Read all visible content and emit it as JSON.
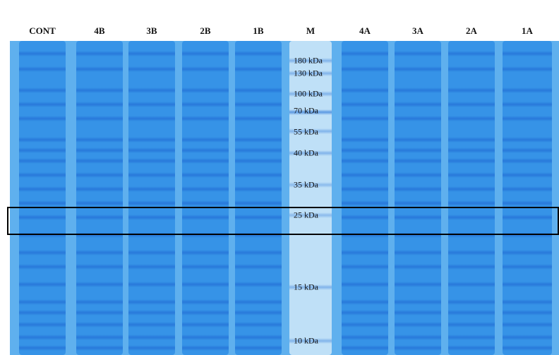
{
  "figure": {
    "lane_labels": [
      "CONT",
      "4B",
      "3B",
      "2B",
      "1B",
      "M",
      "4A",
      "3A",
      "2A",
      "1A"
    ],
    "marker_labels": [
      "180 kDa",
      "130 kDa",
      "100 kDa",
      "70 kDa",
      "55 kDa",
      "40 kDa",
      "35 kDa",
      "25 kDa",
      "15 kDa",
      "10 kDa"
    ],
    "colors": {
      "gel_background": "#5fb0ee",
      "lane_stain": "#2f8fe6",
      "band_dark": "#1f6fd8",
      "marker_lane": "#bfe0f7",
      "highlight_box": "#000000"
    }
  }
}
